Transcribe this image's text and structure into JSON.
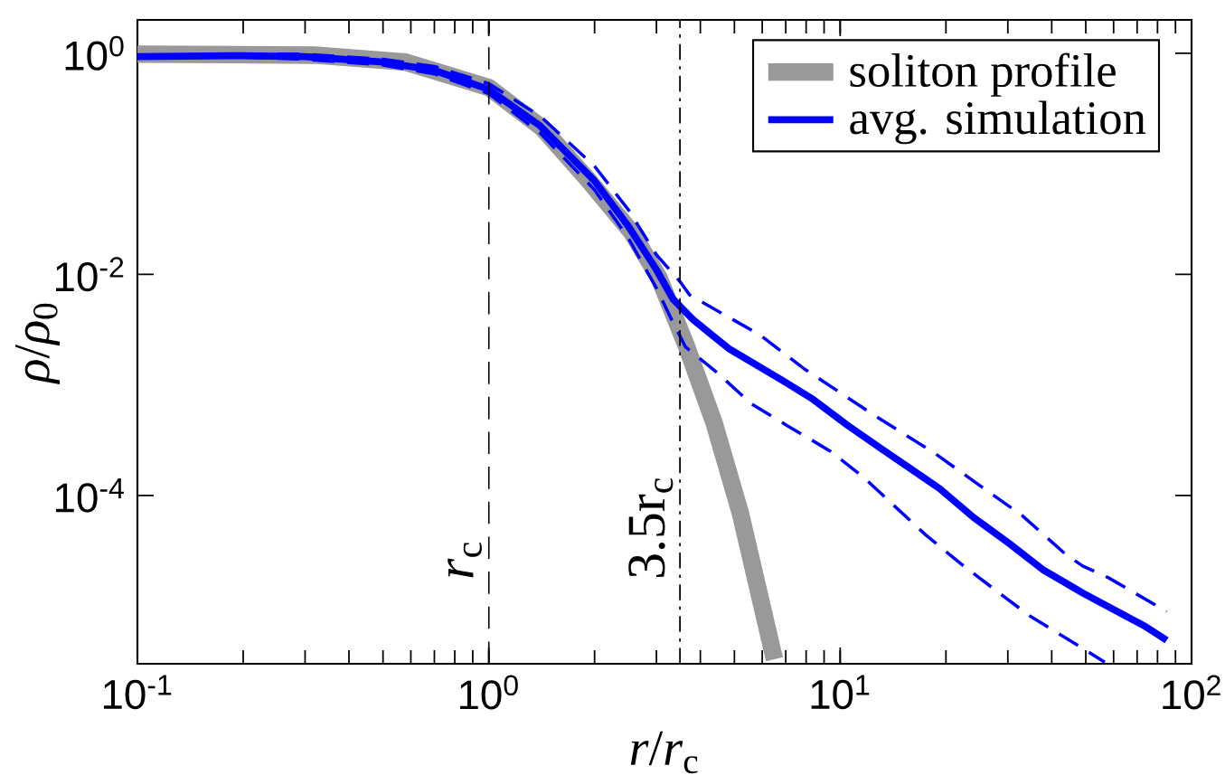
{
  "chart_data": {
    "type": "line",
    "xlabel": "*r*/*r*$_{c}$",
    "ylabel": "*ρ*/*ρ*$_{0}$",
    "log": "xy",
    "xlim": [
      0.1,
      100
    ],
    "ylim": [
      3e-06,
      2
    ],
    "xticks": [
      {
        "value": 0.1,
        "label": "10$^{-1}$"
      },
      {
        "value": 1,
        "label": "10$^{0}$"
      },
      {
        "value": 10,
        "label": "10$^{1}$"
      },
      {
        "value": 100,
        "label": "10$^{2}$"
      }
    ],
    "yticks": [
      {
        "value": 0.0001,
        "label": "10$^{-4}$"
      },
      {
        "value": 0.01,
        "label": "10$^{-2}$"
      },
      {
        "value": 1,
        "label": "10$^{0}$"
      }
    ],
    "grid": false,
    "legend": "top right",
    "marker": "none",
    "series": [
      {
        "name": "soliton profile",
        "color": "#999999",
        "line_style": "solid",
        "x": [
          0.1,
          0.32,
          0.58,
          1.0,
          1.42,
          1.9,
          2.55,
          3.05,
          3.66,
          4.38,
          5.2,
          6.5
        ],
        "values": [
          0.98,
          0.96,
          0.83,
          0.49,
          0.21,
          0.074,
          0.024,
          0.0093,
          0.0022,
          0.00045,
          6.9e-05,
          3.3e-06
        ]
      },
      {
        "name": "avg. simulation",
        "color": "#0000ff",
        "line_style": "solid",
        "x": [
          0.1,
          0.2,
          0.3,
          0.5,
          0.7,
          1.0,
          1.4,
          2.0,
          2.5,
          3.0,
          3.34,
          3.81,
          4.27,
          4.85,
          6.84,
          8.37,
          10.5,
          13.2,
          17.0,
          19.2,
          24.0,
          30.2,
          38.0,
          42.6,
          49.2,
          74,
          85
        ],
        "values": [
          0.93,
          0.95,
          0.93,
          0.83,
          0.7,
          0.47,
          0.22,
          0.07,
          0.027,
          0.011,
          0.006,
          0.0039,
          0.0029,
          0.0021,
          0.0011,
          0.00074,
          0.00043,
          0.00026,
          0.00015,
          0.000115,
          6.3e-05,
          3.7e-05,
          2.1e-05,
          1.7e-05,
          1.3e-05,
          6.5e-06,
          4.9e-06
        ]
      },
      {
        "color": "#0000ff",
        "line_style": "dashed",
        "x": [
          0.1,
          0.2,
          0.3,
          0.5,
          0.7,
          1.0,
          1.4,
          2.0,
          2.5,
          3.0,
          3.5,
          3.73,
          5.94,
          7.89,
          12.4,
          18.6,
          24.7,
          32.9,
          44,
          49,
          58,
          85
        ],
        "values": [
          0.95,
          0.98,
          0.98,
          0.88,
          0.76,
          0.53,
          0.27,
          0.095,
          0.038,
          0.015,
          0.0086,
          0.0065,
          0.0028,
          0.0014,
          0.00054,
          0.00024,
          0.000126,
          6.6e-05,
          2.9e-05,
          2.3e-05,
          1.8e-05,
          8.9e-06
        ]
      },
      {
        "color": "#0000ff",
        "line_style": "dashed",
        "x": [
          0.1,
          0.2,
          0.3,
          0.5,
          0.7,
          1.0,
          1.4,
          2.0,
          2.5,
          3.0,
          3.3,
          3.63,
          4.45,
          5.6,
          7.05,
          9.4,
          11.7,
          17.5,
          22.1,
          29.4,
          34.7,
          50.5,
          56.6
        ],
        "values": [
          0.92,
          0.92,
          0.88,
          0.78,
          0.65,
          0.43,
          0.19,
          0.058,
          0.021,
          0.0075,
          0.004,
          0.0022,
          0.0013,
          0.00067,
          0.00043,
          0.00025,
          0.000144,
          4.4e-05,
          2.4e-05,
          1.2e-05,
          8.1e-06,
          3.9e-06,
          3.1e-06
        ]
      }
    ],
    "ref_lines": [
      {
        "axis": "x",
        "value": 1,
        "label": "*r*$_{c}$",
        "color": "#000000",
        "line_style": "dashed"
      },
      {
        "axis": "x",
        "value": 3.5,
        "label": "3.5r$_{c}$",
        "color": "#000000",
        "line_style": "dashdot"
      }
    ]
  }
}
